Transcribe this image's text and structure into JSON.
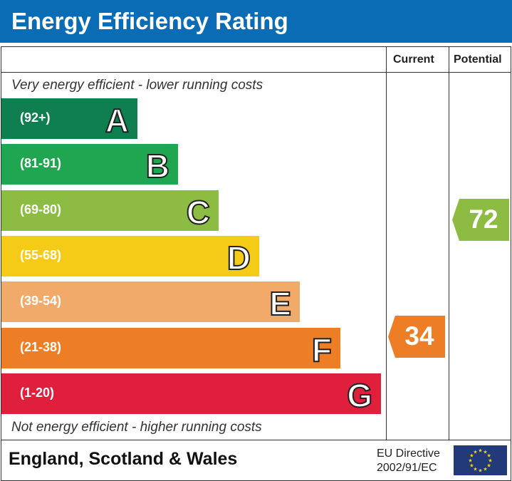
{
  "title": "Energy Efficiency Rating",
  "columns": {
    "current": "Current",
    "potential": "Potential"
  },
  "top_note": "Very energy efficient - lower running costs",
  "bottom_note": "Not energy efficient - higher running costs",
  "footer": {
    "region": "England, Scotland & Wales",
    "directive_line1": "EU Directive",
    "directive_line2": "2002/91/EC"
  },
  "chart_data": {
    "type": "bar",
    "bands": [
      {
        "letter": "A",
        "range": "(92+)",
        "color": "#0f7f4f"
      },
      {
        "letter": "B",
        "range": "(81-91)",
        "color": "#20a651"
      },
      {
        "letter": "C",
        "range": "(69-80)",
        "color": "#8cbc42"
      },
      {
        "letter": "D",
        "range": "(55-68)",
        "color": "#f6cb18"
      },
      {
        "letter": "E",
        "range": "(39-54)",
        "color": "#f2aa6a"
      },
      {
        "letter": "F",
        "range": "(21-38)",
        "color": "#ed7e25"
      },
      {
        "letter": "G",
        "range": "(1-20)",
        "color": "#e01f3d"
      }
    ],
    "current": {
      "value": "34",
      "band": "F",
      "color": "#ed7e25"
    },
    "potential": {
      "value": "72",
      "band": "C",
      "color": "#8cbc42"
    }
  }
}
